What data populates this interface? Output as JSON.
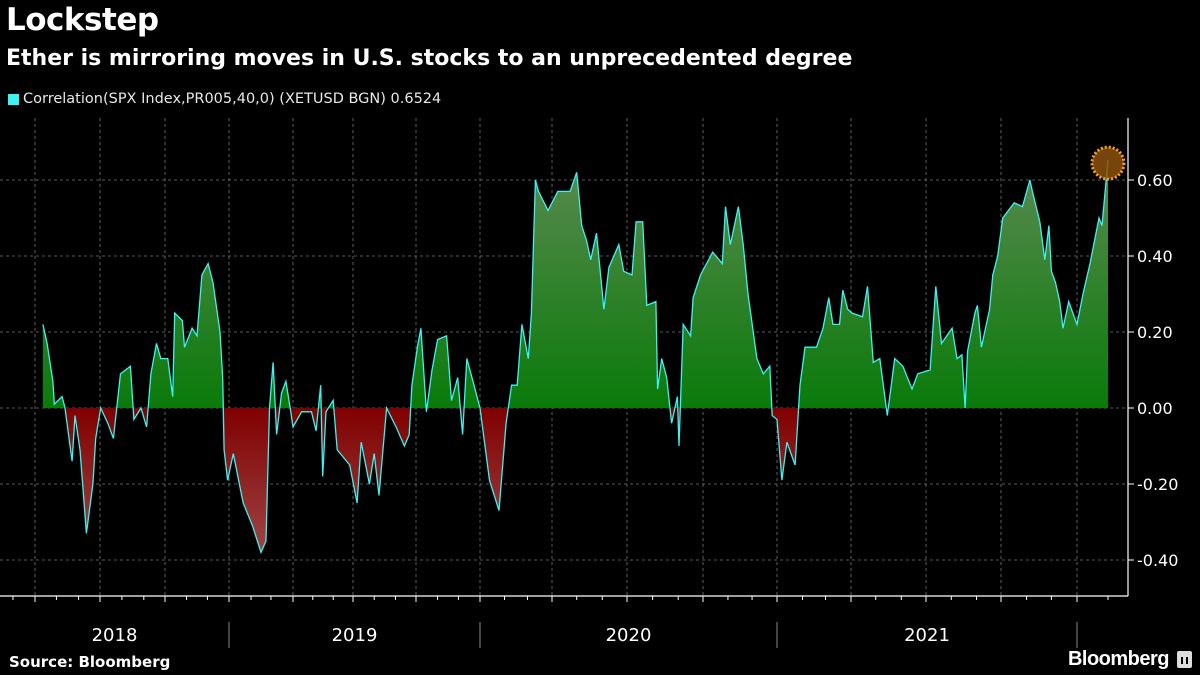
{
  "header": {
    "title": "Lockstep",
    "subtitle": "Ether is mirroring moves in U.S. stocks to an unprecedented degree"
  },
  "legend": {
    "label": "Correlation(SPX Index,PR005,40,0) (XETUSD BGN) 0.6524",
    "color": "#3df2f2"
  },
  "footer": {
    "source": "Source: Bloomberg",
    "logo": "Bloomberg"
  },
  "colors": {
    "line": "#3df2f2",
    "positive_fill": "#138a13",
    "negative_fill": "#8a1010",
    "highlight_marker": "#f0a030"
  },
  "chart_data": {
    "type": "area",
    "title": "Lockstep",
    "subtitle": "Ether is mirroring moves in U.S. stocks to an unprecedented degree",
    "xlabel": "",
    "ylabel": "",
    "ylim": [
      -0.45,
      0.76
    ],
    "y_ticks": [
      "0.60",
      "0.40",
      "0.20",
      "0.00",
      "-0.20",
      "-0.40"
    ],
    "y_tick_values": [
      0.6,
      0.4,
      0.2,
      0,
      -0.2,
      -0.4
    ],
    "y_axis_side": "right",
    "x_year_labels": [
      "2018",
      "2019",
      "2020",
      "2021"
    ],
    "grid": true,
    "legend_position": "top-left",
    "last_value": 0.6524,
    "highlight": "last point circled",
    "series": [
      {
        "name": "Correlation(SPX Index,PR005,40,0) (XETUSD BGN)",
        "points": [
          [
            "2018-04-12",
            0.22
          ],
          [
            "2018-04-18",
            0.17
          ],
          [
            "2018-04-26",
            0.07
          ],
          [
            "2018-04-28",
            0.01
          ],
          [
            "2018-05-09",
            0.03
          ],
          [
            "2018-05-13",
            0.0
          ],
          [
            "2018-05-23",
            -0.14
          ],
          [
            "2018-05-27",
            -0.02
          ],
          [
            "2018-06-03",
            -0.11
          ],
          [
            "2018-06-12",
            -0.33
          ],
          [
            "2018-06-21",
            -0.2
          ],
          [
            "2018-06-25",
            -0.08
          ],
          [
            "2018-07-02",
            0.0
          ],
          [
            "2018-07-12",
            -0.04
          ],
          [
            "2018-07-20",
            -0.08
          ],
          [
            "2018-07-30",
            0.09
          ],
          [
            "2018-08-13",
            0.11
          ],
          [
            "2018-08-18",
            -0.03
          ],
          [
            "2018-08-28",
            0.0
          ],
          [
            "2018-09-05",
            -0.05
          ],
          [
            "2018-09-11",
            0.09
          ],
          [
            "2018-09-19",
            0.17
          ],
          [
            "2018-09-25",
            0.13
          ],
          [
            "2018-10-05",
            0.13
          ],
          [
            "2018-10-12",
            0.03
          ],
          [
            "2018-10-15",
            0.25
          ],
          [
            "2018-10-26",
            0.23
          ],
          [
            "2018-10-29",
            0.16
          ],
          [
            "2018-11-09",
            0.21
          ],
          [
            "2018-11-16",
            0.19
          ],
          [
            "2018-11-23",
            0.35
          ],
          [
            "2018-12-02",
            0.38
          ],
          [
            "2018-12-09",
            0.33
          ],
          [
            "2018-12-19",
            0.2
          ],
          [
            "2018-12-23",
            0.08
          ],
          [
            "2018-12-25",
            -0.11
          ],
          [
            "2018-12-30",
            -0.19
          ],
          [
            "2019-01-07",
            -0.12
          ],
          [
            "2019-01-21",
            -0.25
          ],
          [
            "2019-02-03",
            -0.31
          ],
          [
            "2019-02-15",
            -0.38
          ],
          [
            "2019-02-22",
            -0.35
          ],
          [
            "2019-02-27",
            0.0
          ],
          [
            "2019-03-04",
            0.12
          ],
          [
            "2019-03-09",
            -0.07
          ],
          [
            "2019-03-16",
            0.04
          ],
          [
            "2019-03-22",
            0.07
          ],
          [
            "2019-03-28",
            0.0
          ],
          [
            "2019-04-01",
            -0.05
          ],
          [
            "2019-04-14",
            -0.01
          ],
          [
            "2019-04-29",
            -0.01
          ],
          [
            "2019-05-06",
            -0.06
          ],
          [
            "2019-05-13",
            0.06
          ],
          [
            "2019-05-16",
            -0.18
          ],
          [
            "2019-05-21",
            -0.01
          ],
          [
            "2019-06-01",
            0.02
          ],
          [
            "2019-06-07",
            -0.11
          ],
          [
            "2019-06-26",
            -0.15
          ],
          [
            "2019-07-07",
            -0.25
          ],
          [
            "2019-07-13",
            -0.09
          ],
          [
            "2019-07-25",
            -0.2
          ],
          [
            "2019-08-01",
            -0.12
          ],
          [
            "2019-08-08",
            -0.23
          ],
          [
            "2019-08-19",
            0.0
          ],
          [
            "2019-09-02",
            -0.05
          ],
          [
            "2019-09-14",
            -0.1
          ],
          [
            "2019-09-21",
            -0.07
          ],
          [
            "2019-09-25",
            0.06
          ],
          [
            "2019-10-03",
            0.16
          ],
          [
            "2019-10-08",
            0.21
          ],
          [
            "2019-10-16",
            -0.01
          ],
          [
            "2019-10-24",
            0.1
          ],
          [
            "2019-11-01",
            0.18
          ],
          [
            "2019-11-14",
            0.19
          ],
          [
            "2019-11-21",
            0.02
          ],
          [
            "2019-11-30",
            0.08
          ],
          [
            "2019-12-07",
            -0.07
          ],
          [
            "2019-12-13",
            0.13
          ],
          [
            "2019-12-22",
            0.07
          ],
          [
            "2020-01-01",
            0.0
          ],
          [
            "2020-01-13",
            -0.19
          ],
          [
            "2020-01-25",
            -0.27
          ],
          [
            "2020-02-03",
            -0.04
          ],
          [
            "2020-02-10",
            0.06
          ],
          [
            "2020-02-17",
            0.06
          ],
          [
            "2020-02-23",
            0.22
          ],
          [
            "2020-03-02",
            0.13
          ],
          [
            "2020-03-06",
            0.25
          ],
          [
            "2020-03-11",
            0.6
          ],
          [
            "2020-03-15",
            0.57
          ],
          [
            "2020-03-27",
            0.52
          ],
          [
            "2020-04-08",
            0.57
          ],
          [
            "2020-04-23",
            0.57
          ],
          [
            "2020-05-01",
            0.62
          ],
          [
            "2020-05-07",
            0.48
          ],
          [
            "2020-05-13",
            0.44
          ],
          [
            "2020-05-18",
            0.39
          ],
          [
            "2020-05-25",
            0.46
          ],
          [
            "2020-06-03",
            0.26
          ],
          [
            "2020-06-09",
            0.37
          ],
          [
            "2020-06-21",
            0.43
          ],
          [
            "2020-06-27",
            0.36
          ],
          [
            "2020-07-07",
            0.35
          ],
          [
            "2020-07-12",
            0.49
          ],
          [
            "2020-07-20",
            0.49
          ],
          [
            "2020-07-25",
            0.27
          ],
          [
            "2020-08-05",
            0.28
          ],
          [
            "2020-08-07",
            0.05
          ],
          [
            "2020-08-12",
            0.13
          ],
          [
            "2020-08-18",
            0.08
          ],
          [
            "2020-08-24",
            -0.04
          ],
          [
            "2020-08-31",
            0.03
          ],
          [
            "2020-09-02",
            -0.1
          ],
          [
            "2020-09-07",
            0.22
          ],
          [
            "2020-09-16",
            0.19
          ],
          [
            "2020-09-19",
            0.29
          ],
          [
            "2020-09-28",
            0.35
          ],
          [
            "2020-10-13",
            0.41
          ],
          [
            "2020-10-25",
            0.38
          ],
          [
            "2020-10-29",
            0.53
          ],
          [
            "2020-11-04",
            0.43
          ],
          [
            "2020-11-14",
            0.53
          ],
          [
            "2020-11-20",
            0.43
          ],
          [
            "2020-11-26",
            0.3
          ],
          [
            "2020-12-07",
            0.13
          ],
          [
            "2020-12-15",
            0.09
          ],
          [
            "2020-12-23",
            0.11
          ],
          [
            "2020-12-26",
            -0.02
          ],
          [
            "2021-01-01",
            -0.03
          ],
          [
            "2021-01-07",
            -0.19
          ],
          [
            "2021-01-13",
            -0.09
          ],
          [
            "2021-01-23",
            -0.15
          ],
          [
            "2021-01-29",
            0.06
          ],
          [
            "2021-02-04",
            0.16
          ],
          [
            "2021-02-18",
            0.16
          ],
          [
            "2021-02-26",
            0.21
          ],
          [
            "2021-03-05",
            0.29
          ],
          [
            "2021-03-10",
            0.22
          ],
          [
            "2021-03-18",
            0.22
          ],
          [
            "2021-03-22",
            0.31
          ],
          [
            "2021-03-28",
            0.26
          ],
          [
            "2021-04-02",
            0.25
          ],
          [
            "2021-04-15",
            0.24
          ],
          [
            "2021-04-21",
            0.32
          ],
          [
            "2021-04-28",
            0.12
          ],
          [
            "2021-05-06",
            0.13
          ],
          [
            "2021-05-15",
            -0.02
          ],
          [
            "2021-05-24",
            0.13
          ],
          [
            "2021-06-03",
            0.11
          ],
          [
            "2021-06-14",
            0.05
          ],
          [
            "2021-06-21",
            0.09
          ],
          [
            "2021-07-06",
            0.1
          ],
          [
            "2021-07-13",
            0.32
          ],
          [
            "2021-07-20",
            0.17
          ],
          [
            "2021-08-02",
            0.21
          ],
          [
            "2021-08-08",
            0.13
          ],
          [
            "2021-08-14",
            0.14
          ],
          [
            "2021-08-18",
            0.0
          ],
          [
            "2021-08-21",
            0.15
          ],
          [
            "2021-08-30",
            0.25
          ],
          [
            "2021-09-02",
            0.27
          ],
          [
            "2021-09-07",
            0.16
          ],
          [
            "2021-09-17",
            0.26
          ],
          [
            "2021-09-21",
            0.35
          ],
          [
            "2021-09-27",
            0.4
          ],
          [
            "2021-10-03",
            0.5
          ],
          [
            "2021-10-17",
            0.54
          ],
          [
            "2021-10-27",
            0.53
          ],
          [
            "2021-11-05",
            0.6
          ],
          [
            "2021-11-08",
            0.57
          ],
          [
            "2021-11-17",
            0.49
          ],
          [
            "2021-11-23",
            0.39
          ],
          [
            "2021-11-28",
            0.48
          ],
          [
            "2021-12-01",
            0.36
          ],
          [
            "2021-12-06",
            0.33
          ],
          [
            "2021-12-11",
            0.28
          ],
          [
            "2021-12-15",
            0.21
          ],
          [
            "2021-12-22",
            0.28
          ],
          [
            "2022-01-01",
            0.22
          ],
          [
            "2022-01-07",
            0.3
          ],
          [
            "2022-01-14",
            0.38
          ],
          [
            "2022-01-23",
            0.5
          ],
          [
            "2022-01-26",
            0.48
          ],
          [
            "2022-02-01",
            0.6524
          ]
        ]
      }
    ]
  }
}
